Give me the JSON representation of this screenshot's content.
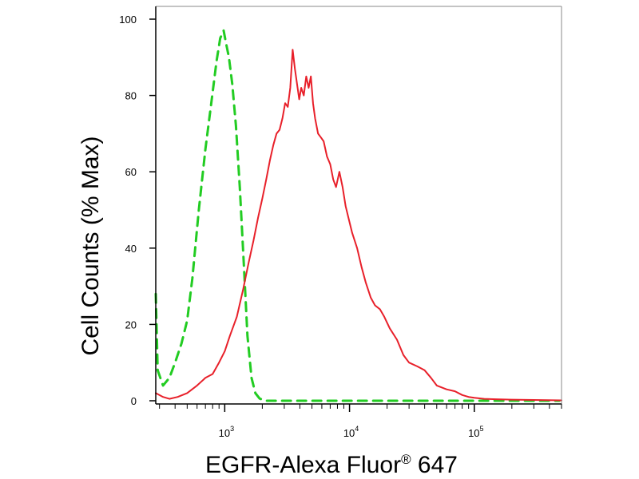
{
  "chart_data": {
    "type": "line",
    "title": "",
    "xlabel": "EGFR-Alexa Fluor",
    "xlabel_sup": "®",
    "xlabel_suffix": " 647",
    "ylabel": "Cell Counts (% Max)",
    "x_scale": "log",
    "xlim": [
      280,
      500000
    ],
    "ylim": [
      0,
      100
    ],
    "y_ticks": [
      0,
      20,
      40,
      60,
      80,
      100
    ],
    "x_ticks": [
      {
        "value": 1000,
        "base": "10",
        "exp": "3"
      },
      {
        "value": 10000,
        "base": "10",
        "exp": "4"
      },
      {
        "value": 100000,
        "base": "10",
        "exp": "5"
      }
    ],
    "grid": false,
    "legend": "none",
    "series": [
      {
        "color": "#22cc22",
        "style": "dashed",
        "x": [
          280,
          290,
          320,
          360,
          400,
          450,
          500,
          550,
          620,
          700,
          780,
          860,
          920,
          980,
          1020,
          1080,
          1150,
          1230,
          1320,
          1420,
          1520,
          1640,
          1760,
          1900,
          2100,
          2400,
          5000,
          50000,
          200000,
          480000
        ],
        "y": [
          28,
          8,
          4,
          6,
          10,
          15,
          21,
          32,
          50,
          66,
          78,
          89,
          95,
          97,
          94,
          90,
          83,
          72,
          56,
          36,
          17,
          6,
          2,
          0.6,
          0,
          0,
          0,
          0,
          0,
          0
        ]
      },
      {
        "color": "#e8202a",
        "style": "solid",
        "x": [
          280,
          320,
          360,
          420,
          500,
          600,
          700,
          800,
          900,
          1000,
          1100,
          1250,
          1400,
          1550,
          1700,
          1850,
          2000,
          2150,
          2300,
          2450,
          2600,
          2750,
          2900,
          3050,
          3200,
          3350,
          3500,
          3650,
          3800,
          3950,
          4100,
          4300,
          4500,
          4700,
          4900,
          5100,
          5300,
          5600,
          5900,
          6200,
          6600,
          7000,
          7400,
          7800,
          8300,
          8800,
          9300,
          9800,
          10500,
          11500,
          12500,
          13500,
          14800,
          16000,
          17500,
          19000,
          21000,
          24000,
          27000,
          30000,
          35000,
          40000,
          45000,
          50000,
          60000,
          70000,
          80000,
          90000,
          100000,
          120000,
          150000,
          200000,
          300000,
          500000
        ],
        "y": [
          2,
          1,
          0.5,
          1,
          2,
          4,
          6,
          7,
          10,
          13,
          17,
          22,
          29,
          36,
          42,
          48,
          53,
          58,
          63,
          67,
          70,
          71,
          74,
          78,
          77,
          82,
          92,
          87,
          83,
          79,
          82,
          80,
          85,
          82,
          85,
          78,
          74,
          70,
          69,
          68,
          64,
          62,
          58,
          56,
          60,
          56,
          51,
          48,
          44,
          40,
          35,
          31,
          27,
          25,
          24,
          22,
          19,
          16,
          12,
          10,
          9,
          8,
          6,
          4,
          3,
          2.5,
          1.5,
          1,
          0.8,
          0.5,
          0.4,
          0.3,
          0.2,
          0.1
        ]
      }
    ]
  }
}
